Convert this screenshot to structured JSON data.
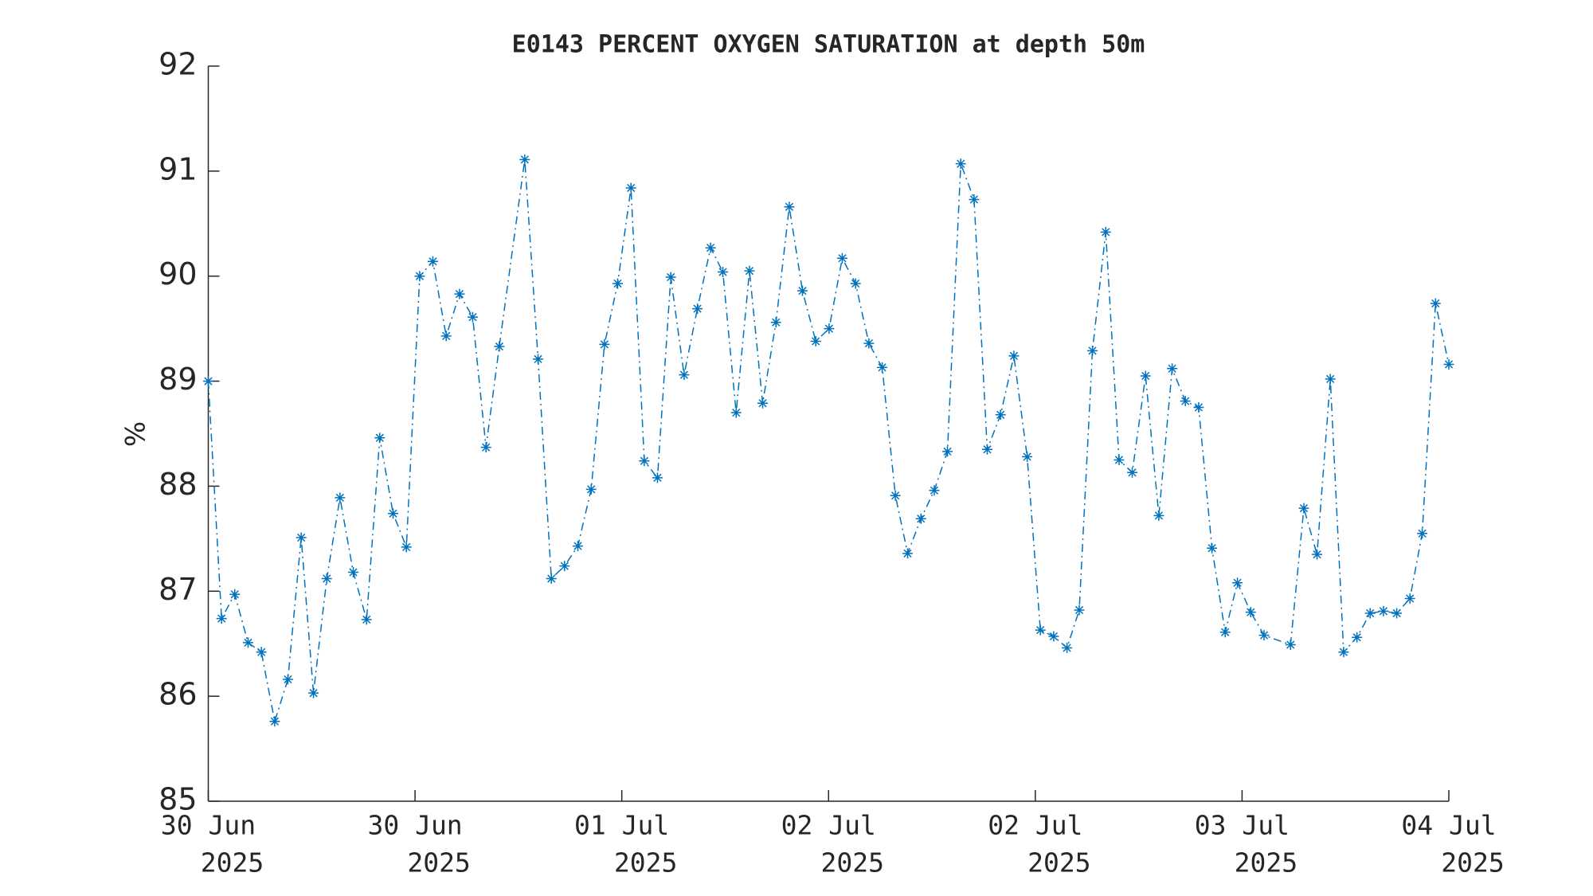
{
  "chart_data": {
    "type": "line",
    "title": "E0143 PERCENT OXYGEN SATURATION at depth 50m",
    "ylabel": "%",
    "color": "#0072bd",
    "line_style": "dashdot",
    "marker": "asterisk",
    "x": [
      0,
      1.03,
      2.05,
      3.08,
      4.11,
      5.14,
      6.16,
      7.19,
      8.14,
      9.17,
      10.19,
      11.22,
      12.25,
      13.27,
      14.3,
      15.33,
      16.36,
      17.38,
      18.41,
      19.44,
      20.46,
      21.49,
      22.52,
      24.49,
      25.52,
      26.55,
      27.57,
      28.6,
      29.63,
      30.66,
      31.68,
      32.71,
      33.74,
      34.76,
      35.79,
      36.82,
      37.85,
      38.87,
      39.82,
      40.85,
      41.88,
      42.9,
      43.93,
      44.96,
      45.98,
      47.01,
      48.04,
      49.06,
      50.09,
      51.12,
      52.15,
      53.17,
      54.12,
      55.15,
      56.18,
      57.2,
      58.23,
      59.26,
      60.28,
      61.31,
      62.34,
      63.37,
      64.39,
      65.42,
      66.45,
      67.4,
      68.42,
      69.45,
      70.48,
      71.5,
      72.53,
      73.56,
      74.59,
      75.61,
      76.64,
      77.67,
      78.69,
      79.64,
      80.67,
      81.7,
      83.75,
      84.78,
      85.8,
      86.83,
      87.86,
      88.89,
      89.91,
      90.94,
      91.97,
      92.99,
      93.94,
      94.97,
      96
    ],
    "values": [
      89.0,
      86.74,
      86.97,
      86.51,
      86.42,
      85.76,
      86.16,
      87.51,
      86.03,
      87.12,
      87.89,
      87.18,
      86.73,
      88.46,
      87.74,
      87.42,
      90.0,
      90.14,
      89.43,
      89.83,
      89.61,
      88.37,
      89.33,
      91.11,
      89.21,
      87.12,
      87.24,
      87.43,
      87.97,
      89.35,
      89.93,
      90.84,
      88.24,
      88.08,
      89.99,
      89.06,
      89.69,
      90.27,
      90.04,
      88.7,
      90.05,
      88.79,
      89.56,
      90.66,
      89.86,
      89.38,
      89.5,
      90.17,
      89.93,
      89.36,
      89.13,
      87.91,
      87.36,
      87.69,
      87.96,
      88.33,
      91.07,
      90.73,
      88.35,
      88.68,
      89.24,
      88.28,
      86.63,
      86.57,
      86.46,
      86.82,
      89.29,
      90.42,
      88.25,
      88.13,
      89.05,
      87.72,
      89.12,
      88.81,
      88.75,
      87.41,
      86.61,
      87.08,
      86.8,
      86.58,
      86.49,
      87.79,
      87.35,
      89.02,
      86.42,
      86.56,
      86.79,
      86.81,
      86.79,
      86.93,
      87.55,
      89.74,
      89.16
    ],
    "xlim": [
      0,
      96
    ],
    "xticks": [
      {
        "value": 0,
        "label": [
          "30 Jun",
          "2025"
        ]
      },
      {
        "value": 16,
        "label": [
          "30 Jun",
          "2025"
        ]
      },
      {
        "value": 32,
        "label": [
          "01 Jul",
          "2025"
        ]
      },
      {
        "value": 48,
        "label": [
          "02 Jul",
          "2025"
        ]
      },
      {
        "value": 64,
        "label": [
          "02 Jul",
          "2025"
        ]
      },
      {
        "value": 80,
        "label": [
          "03 Jul",
          "2025"
        ]
      },
      {
        "value": 96,
        "label": [
          "04 Jul",
          "2025"
        ]
      }
    ],
    "ylim": [
      85,
      92
    ],
    "yticks": [
      85,
      86,
      87,
      88,
      89,
      90,
      91,
      92
    ],
    "grid": false
  }
}
